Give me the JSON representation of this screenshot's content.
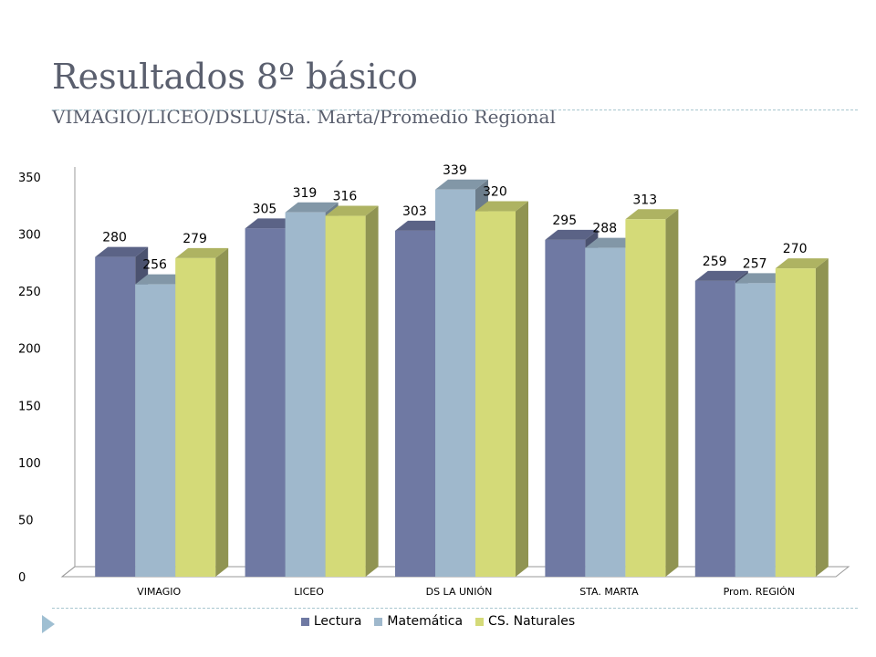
{
  "slide": {
    "title": "Resultados 8º básico",
    "subtitle": "VIMAGIO/LICEO/DSLU/Sta. Marta/Promedio Regional"
  },
  "chart_data": {
    "type": "bar",
    "categories": [
      "VIMAGIO",
      "LICEO",
      "DS LA UNIÓN",
      "STA. MARTA",
      "Prom. REGIÓN"
    ],
    "series": [
      {
        "name": "Lectura",
        "values": [
          280,
          305,
          303,
          295,
          259
        ],
        "color": "#6f79a3"
      },
      {
        "name": "Matemática",
        "values": [
          256,
          319,
          339,
          288,
          257
        ],
        "color": "#9fb8cc"
      },
      {
        "name": "CS. Naturales",
        "values": [
          279,
          316,
          320,
          313,
          270
        ],
        "color": "#d4da78"
      }
    ],
    "ylim": [
      0,
      350
    ],
    "yticks": [
      "0",
      "50",
      "100",
      "150",
      "200",
      "250",
      "300",
      "350"
    ],
    "grid": false,
    "legend": "bottom",
    "style": "3d-clustered-column"
  }
}
